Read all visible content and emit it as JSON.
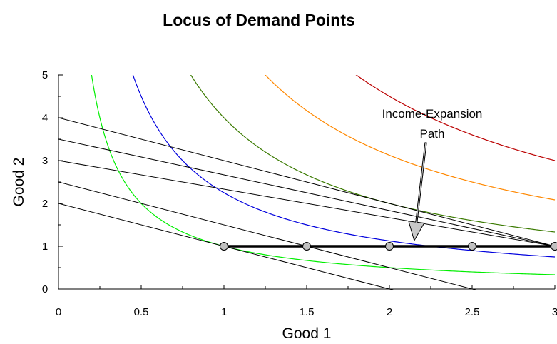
{
  "chart_data": {
    "type": "line",
    "title": "Locus of Demand Points",
    "xlabel": "Good 1",
    "ylabel": "Good 2",
    "xlim": [
      0,
      3
    ],
    "ylim": [
      0,
      5
    ],
    "x_ticks": [
      "0",
      "0.5",
      "1",
      "1.5",
      "2",
      "2.5",
      "3"
    ],
    "y_ticks": [
      "0",
      "1",
      "2",
      "3",
      "4",
      "5"
    ],
    "grid": false,
    "legend": "none",
    "budget_lines": [
      {
        "intercept": 2,
        "slope": -1
      },
      {
        "intercept": 2.5,
        "slope": -1
      },
      {
        "intercept": 3,
        "slope": -0.6667
      },
      {
        "intercept": 3.5,
        "slope": -0.8333
      },
      {
        "intercept": 4,
        "slope": -1
      }
    ],
    "indifference_curves": [
      {
        "k": 1,
        "color": "#00ee00"
      },
      {
        "k": 1.5,
        "color": "#0000dd"
      },
      {
        "k": 2,
        "color": "#3a7a00"
      },
      {
        "k": 2.5,
        "color": "#ff8800"
      },
      {
        "k": 3,
        "color": "#bb0000"
      }
    ],
    "expansion_path": {
      "x": [
        1,
        1.5,
        2,
        2.5,
        3
      ],
      "y": [
        1,
        1,
        1,
        1,
        1
      ]
    },
    "annotation": {
      "lines": [
        "Income-Expansion",
        "Path"
      ],
      "arrow_target": [
        2.15,
        1.05
      ]
    }
  }
}
